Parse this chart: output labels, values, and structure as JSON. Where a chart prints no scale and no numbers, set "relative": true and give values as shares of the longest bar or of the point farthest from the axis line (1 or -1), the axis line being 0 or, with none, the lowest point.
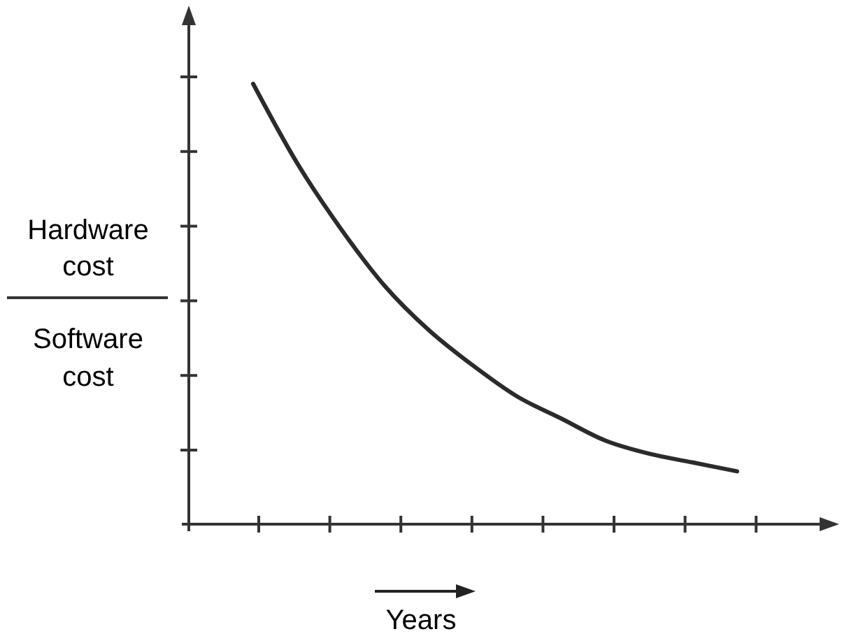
{
  "chart_data": {
    "type": "line",
    "relative": true,
    "ylabel": "Hardware cost",
    "xlabel": "Years",
    "annotations": [
      "Software cost"
    ],
    "categories": [
      null,
      null,
      null,
      null,
      null,
      null,
      null,
      null,
      null,
      null,
      null,
      null
    ],
    "series": [
      {
        "color": "#2b2b2b",
        "values": [
          1,
          0.82,
          0.67,
          0.54,
          0.44,
          0.36,
          0.29,
          0.24,
          0.19,
          0.16,
          0.14,
          0.12
        ]
      }
    ],
    "marker": "none",
    "line_style": "solid"
  }
}
